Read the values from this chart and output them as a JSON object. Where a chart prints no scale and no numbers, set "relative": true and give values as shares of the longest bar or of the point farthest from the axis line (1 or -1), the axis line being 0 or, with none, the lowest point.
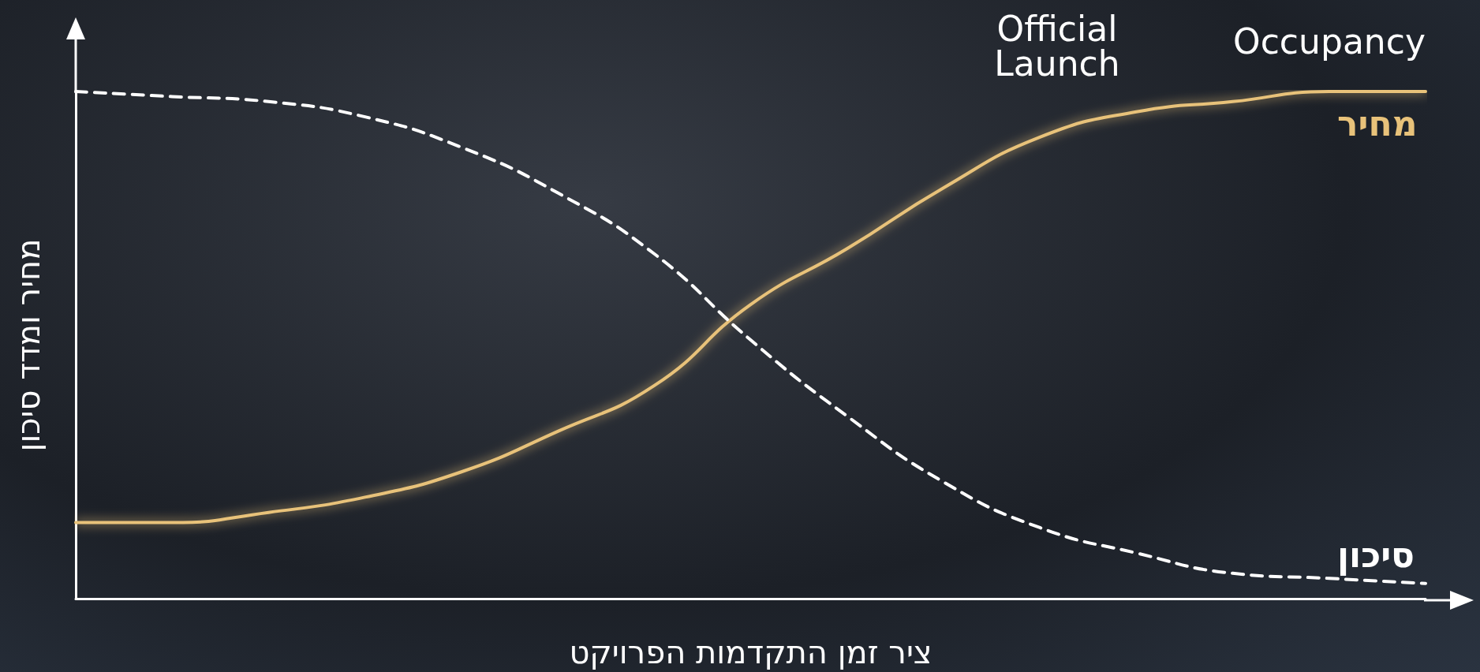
{
  "chart_data": {
    "type": "line",
    "relative": true,
    "xlabel": "ציר זמן התקדמות הפרויקט",
    "ylabel": "מחיר ומדד סיכון",
    "annotations": [
      "Official\nLaunch",
      "Occupancy"
    ],
    "categories": [
      null,
      null,
      null,
      null,
      null,
      null,
      null,
      null,
      null,
      null,
      null,
      null,
      null,
      null,
      null
    ],
    "series": [
      {
        "name": "מחיר",
        "color": "#e8c27a",
        "line_style": "solid",
        "values": [
          0.15,
          0.15,
          0.17,
          0.2,
          0.25,
          0.33,
          0.42,
          0.58,
          0.69,
          0.81,
          0.91,
          0.96,
          0.98,
          1.0,
          1.0
        ]
      },
      {
        "name": "סיכון",
        "color": "#ffffff",
        "line_style": "dashed",
        "values": [
          1.0,
          0.99,
          0.98,
          0.95,
          0.89,
          0.8,
          0.68,
          0.51,
          0.36,
          0.23,
          0.14,
          0.09,
          0.05,
          0.04,
          0.03
        ]
      }
    ],
    "grid": false,
    "legend": false,
    "marker": "none"
  }
}
